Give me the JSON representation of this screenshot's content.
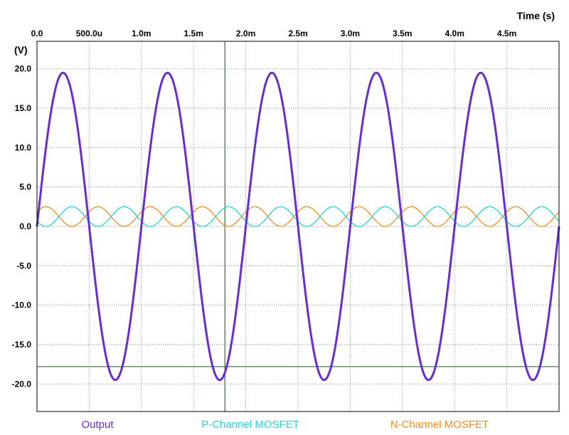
{
  "chart_data": {
    "type": "line",
    "title": "",
    "xlabel": "Time  (s)",
    "ylabel": "(V)",
    "xlim": [
      0,
      0.005
    ],
    "ylim": [
      -23.5,
      23.5
    ],
    "grid": true,
    "legend_placement": "bottom",
    "x_ticks": [
      {
        "value": 0,
        "label": "0.0"
      },
      {
        "value": 0.0005,
        "label": "500.0u"
      },
      {
        "value": 0.001,
        "label": "1.0m"
      },
      {
        "value": 0.0015,
        "label": "1.5m"
      },
      {
        "value": 0.002,
        "label": "2.0m"
      },
      {
        "value": 0.0025,
        "label": "2.5m"
      },
      {
        "value": 0.003,
        "label": "3.0m"
      },
      {
        "value": 0.0035,
        "label": "3.5m"
      },
      {
        "value": 0.004,
        "label": "4.0m"
      },
      {
        "value": 0.0045,
        "label": "4.5m"
      }
    ],
    "y_ticks": [
      {
        "value": 20,
        "label": "20.0"
      },
      {
        "value": 15,
        "label": "15.0"
      },
      {
        "value": 10,
        "label": "10.0"
      },
      {
        "value": 5,
        "label": "5.0"
      },
      {
        "value": 0,
        "label": "0.0"
      },
      {
        "value": -5,
        "label": "-5.0"
      },
      {
        "value": -10,
        "label": "-10.0"
      },
      {
        "value": -15,
        "label": "-15.0"
      },
      {
        "value": -20,
        "label": "-20.0"
      }
    ],
    "cursors": {
      "x": 0.0018,
      "y": -17.8,
      "color": "#406040"
    },
    "series": [
      {
        "name": "Output",
        "color": "#6a2bd0",
        "model": {
          "kind": "sine",
          "amplitude": 19.5,
          "offset": 0,
          "frequency": 1000,
          "phase": 0
        },
        "peak_values": [
          19.5,
          -19.3
        ]
      },
      {
        "name": "P-Channel MOSFET",
        "color": "#22d3d3",
        "model": {
          "kind": "sine",
          "amplitude": -1.25,
          "offset": 1.25,
          "frequency": 2000,
          "phase": 0.5
        },
        "peak_values": [
          2.5,
          0.0
        ]
      },
      {
        "name": "N-Channel MOSFET",
        "color": "#f08c1c",
        "model": {
          "kind": "sine",
          "amplitude": 1.25,
          "offset": 1.25,
          "frequency": 2000,
          "phase": 0.5
        },
        "peak_values": [
          2.5,
          0.0
        ]
      }
    ]
  },
  "colors": {
    "grid": "#5a7a5a",
    "axis_frame": "#000000"
  }
}
